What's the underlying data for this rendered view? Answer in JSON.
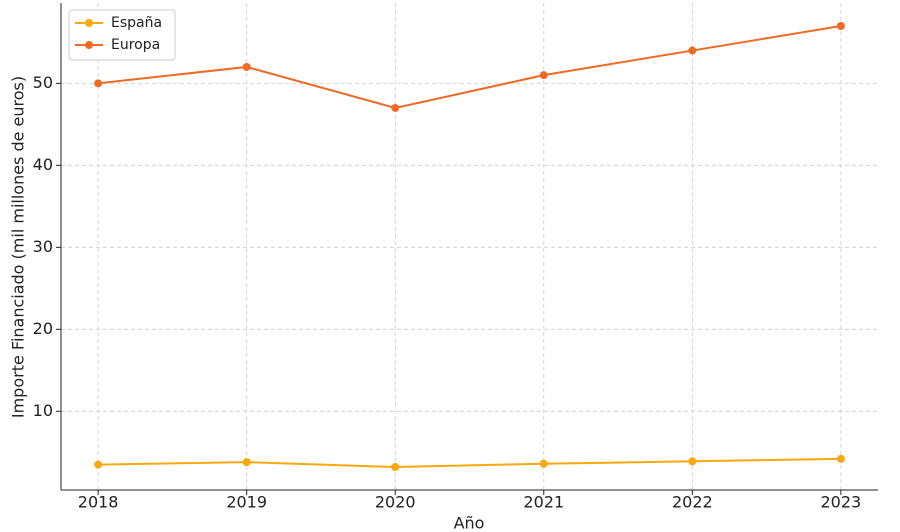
{
  "chart_data": {
    "type": "line",
    "x": [
      2018,
      2019,
      2020,
      2021,
      2022,
      2023
    ],
    "series": [
      {
        "name": "España",
        "color": "#f7a90f",
        "values": [
          3.5,
          3.8,
          3.2,
          3.6,
          3.9,
          4.2
        ]
      },
      {
        "name": "Europa",
        "color": "#ee6a25",
        "values": [
          50,
          52,
          47,
          51,
          54,
          57
        ]
      }
    ],
    "xlabel": "Año",
    "ylabel": "Importe Financiado (mil millones de euros)",
    "xlim": [
      2017.75,
      2023.25
    ],
    "xticks": [
      2018,
      2019,
      2020,
      2021,
      2022,
      2023
    ],
    "ylim": [
      0.4,
      59.8
    ],
    "yticks": [
      10,
      20,
      30,
      40,
      50
    ],
    "grid": true,
    "legend": "upper-left"
  }
}
